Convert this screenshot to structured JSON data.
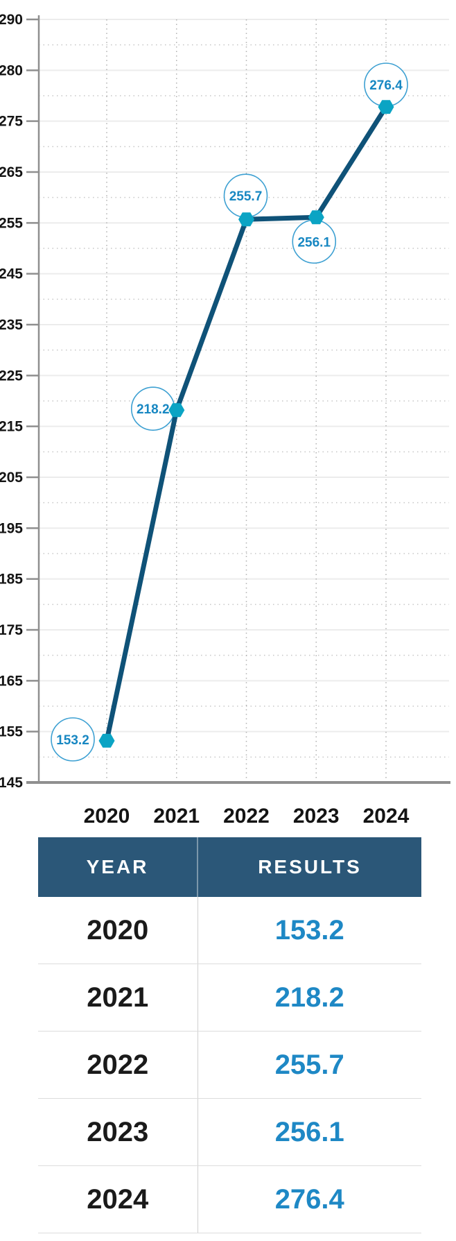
{
  "chart_data": {
    "type": "line",
    "title": "",
    "xlabel": "",
    "ylabel": "",
    "legend": "none",
    "categories": [
      "2020",
      "2021",
      "2022",
      "2023",
      "2024"
    ],
    "series": [
      {
        "name": "RESULTS",
        "values": [
          153.2,
          218.2,
          255.7,
          256.1,
          276.4
        ]
      }
    ],
    "point_labels": [
      "153.2",
      "218.2",
      "255.7",
      "256.1",
      "276.4"
    ],
    "y_tick_labels": [
      "290",
      "280",
      "275",
      "265",
      "255",
      "245",
      "235",
      "225",
      "215",
      "205",
      "195",
      "185",
      "175",
      "165",
      "155",
      "145"
    ],
    "ylim": [
      145,
      290
    ],
    "grid": {
      "horizontal_solid": true,
      "horizontal_dotted_midlines": true,
      "vertical_dotted": true
    },
    "colors": {
      "line": "#0f5278",
      "marker": "#0ba4c4",
      "label_circle_stroke": "#3da0d2",
      "label_text": "#1787c2",
      "axis": "#8f8f8f",
      "grid_solid": "#ececec",
      "grid_dotted": "#c6c6c6",
      "grid_vertical_dotted": "#b0b0b0",
      "tick_label": "#141414"
    }
  },
  "table": {
    "columns": [
      "YEAR",
      "RESULTS"
    ],
    "rows": [
      {
        "year": "2020",
        "result": "153.2"
      },
      {
        "year": "2021",
        "result": "218.2"
      },
      {
        "year": "2022",
        "result": "255.7"
      },
      {
        "year": "2023",
        "result": "256.1"
      },
      {
        "year": "2024",
        "result": "276.4"
      }
    ],
    "colors": {
      "header_bg": "#2b5778",
      "header_text": "#ffffff",
      "year_text": "#1a1a1a",
      "result_text": "#1e88c5",
      "row_border": "#dcdcdc",
      "column_divider": "#d0d0d0"
    }
  }
}
